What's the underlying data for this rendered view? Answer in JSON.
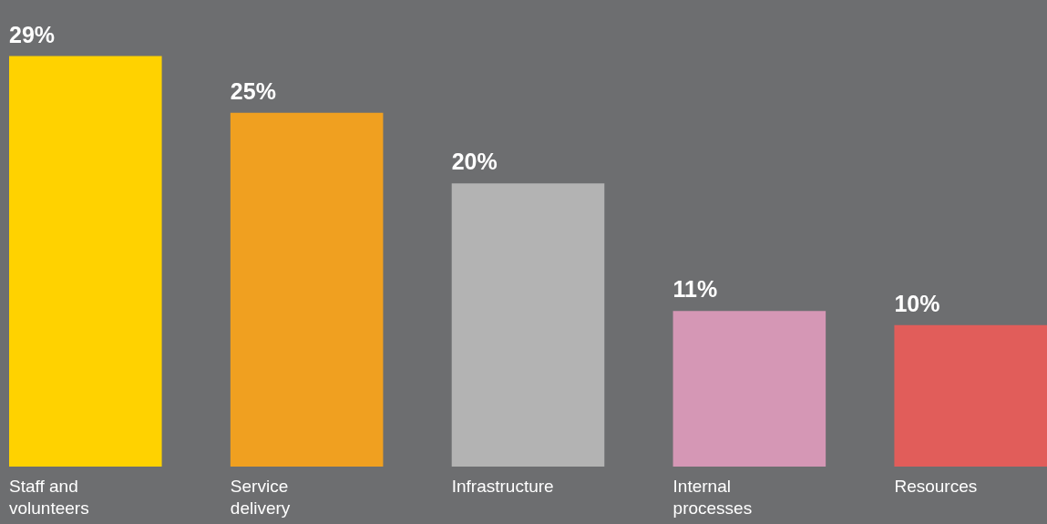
{
  "chart_data": {
    "type": "bar",
    "categories": [
      "Staff and volunteers",
      "Service delivery",
      "Infrastructure",
      "Internal processes",
      "Resources"
    ],
    "values": [
      29,
      25,
      20,
      11,
      10
    ],
    "value_labels": [
      "29%",
      "25%",
      "20%",
      "11%",
      "10%"
    ],
    "colors": [
      "#ffd200",
      "#f0a020",
      "#b3b3b3",
      "#d597b5",
      "#e15d5a"
    ]
  }
}
